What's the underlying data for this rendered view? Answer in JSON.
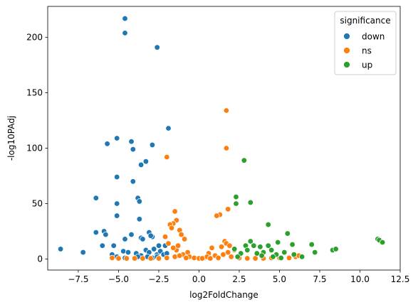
{
  "chart_data": {
    "type": "scatter",
    "title": "",
    "xlabel": "log2FoldChange",
    "ylabel": "-log10PAdj",
    "xlim": [
      -9.4,
      12.5
    ],
    "ylim": [
      -10,
      228
    ],
    "xticks": [
      -7.5,
      -5.0,
      -2.5,
      0.0,
      2.5,
      5.0,
      7.5,
      10.0,
      12.5
    ],
    "xtick_labels": [
      "−7.5",
      "−5.0",
      "−2.5",
      "0.0",
      "2.5",
      "5.0",
      "7.5",
      "10.0",
      "12.5"
    ],
    "yticks": [
      0,
      50,
      100,
      150,
      200
    ],
    "ytick_labels": [
      "0",
      "50",
      "100",
      "150",
      "200"
    ],
    "grid": false,
    "legend": {
      "title": "significance",
      "placement": "top-right",
      "entries": [
        "down",
        "ns",
        "up"
      ]
    },
    "series": [
      {
        "name": "down",
        "color": "#1f77b4",
        "points": [
          [
            -4.6,
            217
          ],
          [
            -4.6,
            204
          ],
          [
            -2.6,
            191
          ],
          [
            -1.9,
            118
          ],
          [
            -5.1,
            109
          ],
          [
            -5.7,
            104
          ],
          [
            -4.2,
            106
          ],
          [
            -2.9,
            103
          ],
          [
            -4.1,
            99
          ],
          [
            -3.3,
            88
          ],
          [
            -3.6,
            85
          ],
          [
            -5.1,
            74
          ],
          [
            -4.1,
            70
          ],
          [
            -6.4,
            55
          ],
          [
            -3.8,
            55
          ],
          [
            -3.7,
            52
          ],
          [
            -5.1,
            50
          ],
          [
            -5.1,
            39
          ],
          [
            -3.7,
            36
          ],
          [
            -6.4,
            24
          ],
          [
            -5.9,
            25
          ],
          [
            -5.8,
            22
          ],
          [
            -4.2,
            22
          ],
          [
            -4.6,
            18
          ],
          [
            -3.6,
            19
          ],
          [
            -3.5,
            18
          ],
          [
            -3.1,
            24
          ],
          [
            -2.9,
            20
          ],
          [
            -3.0,
            21
          ],
          [
            -2.5,
            12
          ],
          [
            -2.1,
            12
          ],
          [
            -6.0,
            12
          ],
          [
            -5.3,
            12
          ],
          [
            -8.6,
            9
          ],
          [
            -7.2,
            6
          ],
          [
            -5.4,
            4
          ],
          [
            -5.1,
            2
          ],
          [
            -4.7,
            7
          ],
          [
            -4.4,
            6
          ],
          [
            -3.9,
            5
          ],
          [
            -3.6,
            3
          ],
          [
            -3.3,
            8
          ],
          [
            -3.1,
            6
          ],
          [
            -2.8,
            9
          ],
          [
            -2.6,
            4
          ],
          [
            -2.4,
            7
          ],
          [
            -2.2,
            4
          ],
          [
            -2.0,
            5
          ],
          [
            -3.8,
            2
          ],
          [
            -3.2,
            2
          ],
          [
            -2.9,
            1
          ],
          [
            -2.6,
            2
          ],
          [
            -4.6,
            1
          ]
        ]
      },
      {
        "name": "ns",
        "color": "#ff7f0e",
        "points": [
          [
            1.7,
            134
          ],
          [
            1.7,
            100
          ],
          [
            -2.0,
            92
          ],
          [
            1.8,
            45
          ],
          [
            1.3,
            40
          ],
          [
            1.1,
            39
          ],
          [
            -1.5,
            43
          ],
          [
            -1.4,
            35
          ],
          [
            -1.6,
            32
          ],
          [
            -1.8,
            31
          ],
          [
            -1.7,
            28
          ],
          [
            -2.1,
            20
          ],
          [
            -1.9,
            14
          ],
          [
            -1.2,
            26
          ],
          [
            -1.1,
            22
          ],
          [
            -0.9,
            18
          ],
          [
            1.6,
            16
          ],
          [
            1.7,
            14
          ],
          [
            1.9,
            12
          ],
          [
            1.4,
            11
          ],
          [
            0.8,
            10
          ],
          [
            0.6,
            5
          ],
          [
            -0.7,
            6
          ],
          [
            -1.4,
            8
          ],
          [
            -1.0,
            4
          ],
          [
            -0.6,
            2
          ],
          [
            -0.3,
            1
          ],
          [
            0.0,
            0.5
          ],
          [
            0.3,
            1
          ],
          [
            0.5,
            2
          ],
          [
            1.0,
            3
          ],
          [
            1.5,
            4
          ],
          [
            2.0,
            2
          ],
          [
            2.5,
            1
          ],
          [
            3.0,
            0.5
          ],
          [
            3.5,
            0.5
          ],
          [
            4.0,
            0.5
          ],
          [
            4.5,
            1
          ],
          [
            5.0,
            1
          ],
          [
            5.6,
            1
          ],
          [
            6.0,
            2
          ],
          [
            6.2,
            3
          ],
          [
            -5.4,
            1
          ],
          [
            -5.0,
            0.5
          ],
          [
            -4.5,
            0.5
          ],
          [
            -4.0,
            0.5
          ],
          [
            -3.5,
            0.5
          ],
          [
            -3.0,
            0.5
          ],
          [
            -2.5,
            0.5
          ],
          [
            -2.0,
            1
          ],
          [
            -1.5,
            2
          ],
          [
            -1.2,
            3
          ],
          [
            -0.8,
            1
          ],
          [
            0.2,
            0.5
          ],
          [
            0.7,
            0.5
          ],
          [
            1.2,
            1
          ],
          [
            -1.6,
            10
          ],
          [
            -1.3,
            12
          ],
          [
            1.8,
            6
          ],
          [
            2.2,
            8
          ]
        ]
      },
      {
        "name": "up",
        "color": "#2ca02c",
        "points": [
          [
            2.8,
            89
          ],
          [
            2.3,
            56
          ],
          [
            2.3,
            50
          ],
          [
            3.2,
            51
          ],
          [
            4.3,
            31
          ],
          [
            5.5,
            23
          ],
          [
            4.9,
            15
          ],
          [
            3.4,
            12
          ],
          [
            2.9,
            12
          ],
          [
            3.0,
            8
          ],
          [
            3.2,
            16
          ],
          [
            3.8,
            11
          ],
          [
            4.3,
            12
          ],
          [
            4.5,
            8
          ],
          [
            4.0,
            6
          ],
          [
            3.6,
            5
          ],
          [
            5.3,
            6
          ],
          [
            5.8,
            13
          ],
          [
            5.9,
            4
          ],
          [
            2.2,
            9
          ],
          [
            2.6,
            5
          ],
          [
            4.8,
            4
          ],
          [
            7.0,
            13
          ],
          [
            7.2,
            6
          ],
          [
            8.3,
            8
          ],
          [
            8.5,
            9
          ],
          [
            11.1,
            18
          ],
          [
            11.2,
            17
          ],
          [
            11.4,
            15
          ],
          [
            6.4,
            2
          ],
          [
            3.9,
            3
          ],
          [
            4.6,
            2
          ],
          [
            5.1,
            1
          ],
          [
            2.4,
            2
          ]
        ]
      }
    ]
  }
}
